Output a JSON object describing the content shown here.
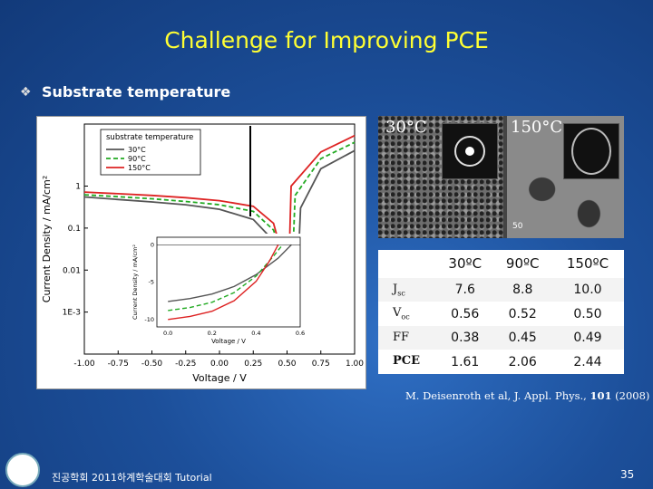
{
  "slide": {
    "title": "Challenge for Improving PCE",
    "bullet_icon": "diamond-bullet-icon",
    "bullet_text": "Substrate temperature",
    "citation": {
      "authors": "M. Deisenroth et al, J. Appl. Phys., ",
      "volume": "101",
      "year": " (2008)"
    },
    "footer": "진공학회 2011하계학술대회 Tutorial",
    "page_number": "35"
  },
  "micrographs": {
    "left_label": "30°C",
    "right_label": "150°C",
    "scale_text": "50"
  },
  "table": {
    "headers": [
      "",
      "30ºC",
      "90ºC",
      "150ºC"
    ],
    "rows": [
      {
        "label": "J",
        "sub": "sc",
        "values": [
          "7.6",
          "8.8",
          "10.0"
        ]
      },
      {
        "label": "V",
        "sub": "oc",
        "values": [
          "0.56",
          "0.52",
          "0.50"
        ]
      },
      {
        "label": "FF",
        "sub": "",
        "values": [
          "0.38",
          "0.45",
          "0.49"
        ]
      },
      {
        "label": "PCE",
        "sub": "",
        "values": [
          "1.61",
          "2.06",
          "2.44"
        ]
      }
    ]
  },
  "chart_data": {
    "type": "line",
    "xlabel": "Voltage  /  V",
    "ylabel": "Current Density  /  mA/cm²",
    "xlim": [
      -1.0,
      1.0
    ],
    "ylim_log": [
      0.0001,
      30
    ],
    "yscale": "log",
    "x_ticks": [
      "-1.00",
      "-0.75",
      "-0.50",
      "-0.25",
      "0.00",
      "0.25",
      "0.50",
      "0.75",
      "1.00"
    ],
    "y_ticks": [
      {
        "v": 1,
        "label": "1"
      },
      {
        "v": 0.1,
        "label": "0.1"
      },
      {
        "v": 0.01,
        "label": "0.01"
      },
      {
        "v": 0.001,
        "label": "1E-3"
      }
    ],
    "legend": {
      "title": "substrate temperature",
      "position": "top-left"
    },
    "series": [
      {
        "name": "30°C",
        "color": "#555555",
        "dash": "",
        "x": [
          -1.0,
          -0.75,
          -0.5,
          -0.25,
          0.0,
          0.25,
          0.4,
          0.5,
          0.56,
          0.6,
          0.75,
          1.0
        ],
        "y": [
          0.55,
          0.48,
          0.42,
          0.36,
          0.28,
          0.16,
          0.05,
          0.008,
          0.0003,
          0.3,
          2.6,
          7.0
        ]
      },
      {
        "name": "90°C",
        "color": "#22aa22",
        "dash": "5,3",
        "x": [
          -1.0,
          -0.75,
          -0.5,
          -0.25,
          0.0,
          0.25,
          0.4,
          0.48,
          0.52,
          0.56,
          0.75,
          1.0
        ],
        "y": [
          0.62,
          0.56,
          0.5,
          0.43,
          0.36,
          0.25,
          0.09,
          0.015,
          0.0003,
          0.6,
          4.5,
          11.0
        ]
      },
      {
        "name": "150°C",
        "color": "#dd2222",
        "dash": "",
        "x": [
          -1.0,
          -0.75,
          -0.5,
          -0.25,
          0.0,
          0.25,
          0.4,
          0.47,
          0.5,
          0.53,
          0.75,
          1.0
        ],
        "y": [
          0.72,
          0.66,
          0.6,
          0.53,
          0.45,
          0.33,
          0.13,
          0.02,
          0.0003,
          1.0,
          6.5,
          16.0
        ]
      }
    ],
    "inset": {
      "xlabel": "Voltage  /  V",
      "ylabel": "Current Density  /  mA/cm²",
      "xlim": [
        -0.05,
        0.6
      ],
      "ylim": [
        -11,
        1
      ],
      "x_ticks": [
        "0.0",
        "0.2",
        "0.4",
        "0.6"
      ],
      "y_ticks": [
        {
          "v": 0,
          "label": "0"
        },
        {
          "v": -5,
          "label": "-5"
        },
        {
          "v": -10,
          "label": "-10"
        }
      ],
      "series": [
        {
          "name": "30°C",
          "x": [
            0.0,
            0.1,
            0.2,
            0.3,
            0.4,
            0.5,
            0.56
          ],
          "y": [
            -7.6,
            -7.2,
            -6.6,
            -5.6,
            -4.0,
            -1.8,
            0.0
          ]
        },
        {
          "name": "90°C",
          "x": [
            0.0,
            0.1,
            0.2,
            0.3,
            0.4,
            0.48,
            0.52
          ],
          "y": [
            -8.8,
            -8.4,
            -7.7,
            -6.4,
            -4.2,
            -1.5,
            0.0
          ]
        },
        {
          "name": "150°C",
          "x": [
            0.0,
            0.1,
            0.2,
            0.3,
            0.4,
            0.46,
            0.5
          ],
          "y": [
            -10.0,
            -9.6,
            -8.9,
            -7.5,
            -4.9,
            -2.2,
            0.0
          ]
        }
      ]
    }
  }
}
